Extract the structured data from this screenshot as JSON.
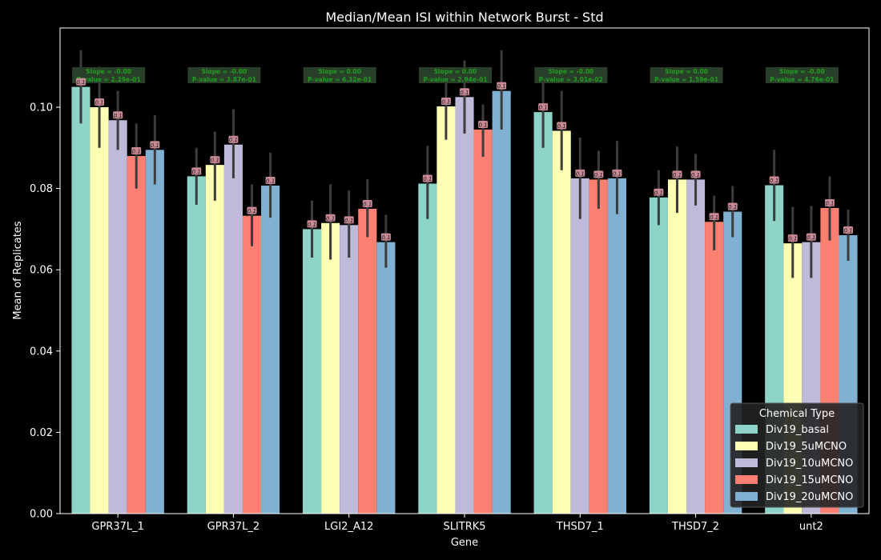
{
  "chart_data": {
    "type": "bar",
    "title": "Median/Mean ISI within Network Burst - Std",
    "xlabel": "Gene",
    "ylabel": "Mean of Replicates",
    "ylim": [
      0,
      0.12
    ],
    "yticks": [
      0.0,
      0.02,
      0.04,
      0.06,
      0.08,
      0.1
    ],
    "ytick_labels": [
      "0.00",
      "0.02",
      "0.04",
      "0.06",
      "0.08",
      "0.10"
    ],
    "categories": [
      "GPR37L_1",
      "GPR37L_2",
      "LGI2_A12",
      "SLITRK5",
      "THSD7_1",
      "THSD7_2",
      "unt2"
    ],
    "legend": {
      "title": "Chemical Type",
      "position": "lower-right"
    },
    "series": [
      {
        "name": "Div19_basal",
        "color": "#8dd3c7",
        "values": [
          0.105,
          0.083,
          0.07,
          0.0812,
          0.0988,
          0.0778,
          0.0808
        ],
        "err_low": [
          0.096,
          0.076,
          0.063,
          0.0725,
          0.09,
          0.071,
          0.072
        ],
        "err_high": [
          0.114,
          0.09,
          0.077,
          0.0905,
          0.1075,
          0.0845,
          0.0895
        ]
      },
      {
        "name": "Div19_5uMCNO",
        "color": "#ffffb3",
        "values": [
          0.1,
          0.0858,
          0.0715,
          0.1002,
          0.0942,
          0.0822,
          0.0665
        ],
        "err_low": [
          0.09,
          0.077,
          0.0625,
          0.092,
          0.0845,
          0.074,
          0.058
        ],
        "err_high": [
          0.11,
          0.094,
          0.081,
          0.108,
          0.104,
          0.0903,
          0.0755
        ]
      },
      {
        "name": "Div19_10uMCNO",
        "color": "#bebada",
        "values": [
          0.0968,
          0.0908,
          0.071,
          0.1025,
          0.0825,
          0.0822,
          0.0668
        ],
        "err_low": [
          0.0895,
          0.0825,
          0.063,
          0.0935,
          0.0725,
          0.0758,
          0.058
        ],
        "err_high": [
          0.104,
          0.0995,
          0.0795,
          0.1115,
          0.0925,
          0.0885,
          0.0757
        ]
      },
      {
        "name": "Div19_15uMCNO",
        "color": "#fb8072",
        "values": [
          0.088,
          0.0733,
          0.075,
          0.0945,
          0.0822,
          0.0718,
          0.0752
        ],
        "err_low": [
          0.08,
          0.0658,
          0.068,
          0.0878,
          0.075,
          0.0648,
          0.0672
        ],
        "err_high": [
          0.096,
          0.081,
          0.0823,
          0.1007,
          0.0893,
          0.0782,
          0.083
        ]
      },
      {
        "name": "Div19_20uMCNO",
        "color": "#80b1d3",
        "values": [
          0.0895,
          0.0807,
          0.0668,
          0.104,
          0.0825,
          0.0743,
          0.0685
        ],
        "err_low": [
          0.081,
          0.0728,
          0.0605,
          0.0945,
          0.0737,
          0.068,
          0.0622
        ],
        "err_high": [
          0.098,
          0.0888,
          0.0735,
          0.114,
          0.0917,
          0.0806,
          0.0748
        ]
      }
    ],
    "bar_value_label": "0.1",
    "annotations": [
      {
        "line1": "Slope = -0.00",
        "line2": "P-value = 2.29e-01"
      },
      {
        "line1": "Slope = -0.00",
        "line2": "P-value = 3.87e-01"
      },
      {
        "line1": "Slope = 0.00",
        "line2": "P-value = 6.32e-01"
      },
      {
        "line1": "Slope = 0.00",
        "line2": "P-value = 2.94e-01"
      },
      {
        "line1": "Slope = -0.00",
        "line2": "P-value = 3.01e-02"
      },
      {
        "line1": "Slope = 0.00",
        "line2": "P-value = 1.59e-01"
      },
      {
        "line1": "Slope = -0.00",
        "line2": "P-value = 4.76e-01"
      }
    ]
  }
}
